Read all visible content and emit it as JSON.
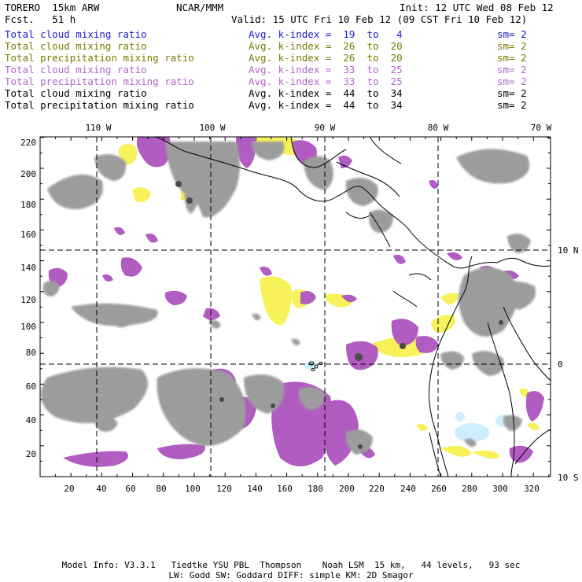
{
  "header": {
    "model": "TORERO  15km ARW",
    "org": "NCAR/MMM",
    "init": "Init: 12 UTC Wed 08 Feb 12",
    "fcst": "Fcst.   51 h",
    "valid": "Valid: 15 UTC Fri 10 Feb 12 (09 CST Fri 10 Feb 12)"
  },
  "legend": [
    {
      "field": "Total cloud mixing ratio",
      "kidx": "Avg. k-index =  19  to   4",
      "sm": "sm= 2",
      "color": "#1a1acc"
    },
    {
      "field": "Total cloud mixing ratio",
      "kidx": "Avg. k-index =  26  to  20",
      "sm": "sm= 2",
      "color": "#7a7a00"
    },
    {
      "field": "Total precipitation mixing ratio",
      "kidx": "Avg. k-index =  26  to  20",
      "sm": "sm= 2",
      "color": "#7a7a00"
    },
    {
      "field": "Total cloud mixing ratio",
      "kidx": "Avg. k-index =  33  to  25",
      "sm": "sm= 2",
      "color": "#b266c8"
    },
    {
      "field": "Total precipitation mixing ratio",
      "kidx": "Avg. k-index =  33  to  25",
      "sm": "sm= 2",
      "color": "#b266c8"
    },
    {
      "field": "Total cloud mixing ratio",
      "kidx": "Avg. k-index =  44  to  34",
      "sm": "sm= 2",
      "color": "#000000"
    },
    {
      "field": "Total precipitation mixing ratio",
      "kidx": "Avg. k-index =  44  to  34",
      "sm": "sm= 2",
      "color": "#000000"
    }
  ],
  "map": {
    "lon_labels": [
      "110 W",
      "100 W",
      "90 W",
      "80 W",
      "70 W"
    ],
    "lat_labels": [
      "10 N",
      "0",
      "10 S"
    ],
    "x_ticks": [
      "20",
      "40",
      "60",
      "80",
      "100",
      "120",
      "140",
      "160",
      "180",
      "200",
      "220",
      "240",
      "260",
      "280",
      "300",
      "320"
    ],
    "y_ticks": [
      "20",
      "40",
      "60",
      "80",
      "100",
      "120",
      "140",
      "160",
      "180",
      "200",
      "220"
    ],
    "colors": {
      "gray": "#9c9c9c",
      "dark": "#4a4a4a",
      "magenta": "#b05cc0",
      "yellow": "#f7f25a",
      "lightblue": "#cdeeff",
      "grid": "#000000"
    }
  },
  "footer": {
    "line1": "Model Info: V3.3.1   Tiedtke YSU PBL  Thompson    Noah LSM  15 km,   44 levels,   93 sec",
    "line2": "LW: Godd SW: Goddard DIFF: simple KM: 2D Smagor"
  }
}
